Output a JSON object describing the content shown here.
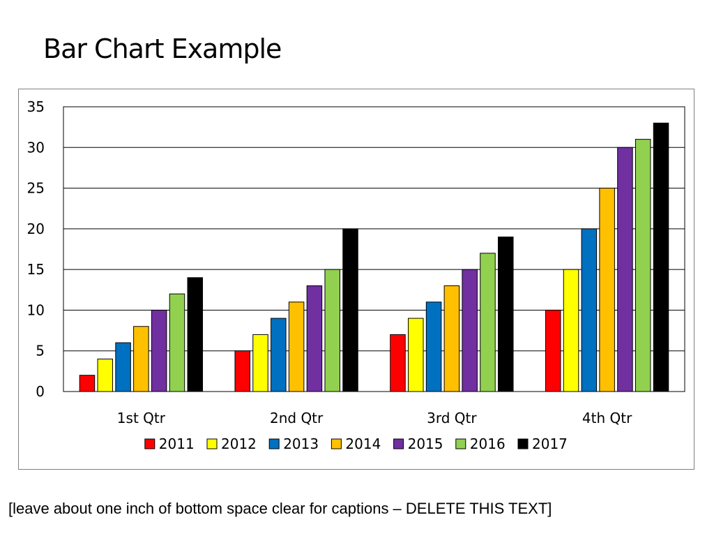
{
  "slide": {
    "title": "Bar Chart Example",
    "caption": "[leave about one inch of bottom space clear for captions – DELETE THIS TEXT]"
  },
  "chart_data": {
    "type": "bar",
    "title": "",
    "xlabel": "",
    "ylabel": "",
    "categories": [
      "1st Qtr",
      "2nd Qtr",
      "3rd Qtr",
      "4th Qtr"
    ],
    "series": [
      {
        "name": "2011",
        "color": "#ff0000",
        "values": [
          2,
          5,
          7,
          10
        ]
      },
      {
        "name": "2012",
        "color": "#ffff00",
        "values": [
          4,
          7,
          9,
          15
        ]
      },
      {
        "name": "2013",
        "color": "#0070c0",
        "values": [
          6,
          9,
          11,
          20
        ]
      },
      {
        "name": "2014",
        "color": "#ffc000",
        "values": [
          8,
          11,
          13,
          25
        ]
      },
      {
        "name": "2015",
        "color": "#7030a0",
        "values": [
          10,
          13,
          15,
          30
        ]
      },
      {
        "name": "2016",
        "color": "#92d050",
        "values": [
          12,
          15,
          17,
          31
        ]
      },
      {
        "name": "2017",
        "color": "#000000",
        "values": [
          14,
          20,
          19,
          33
        ]
      }
    ],
    "ylim": [
      0,
      35
    ],
    "yticks": [
      0,
      5,
      10,
      15,
      20,
      25,
      30,
      35
    ],
    "grid": true,
    "legend": "bottom"
  }
}
